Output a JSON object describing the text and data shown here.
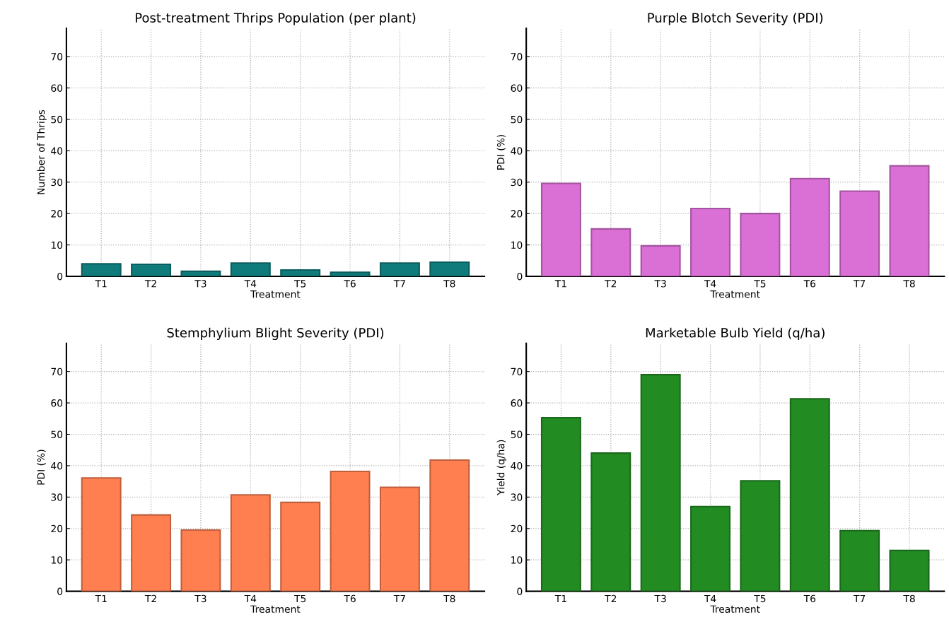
{
  "chart_data": [
    {
      "type": "bar",
      "title": "Post-treatment Thrips Population (per plant)",
      "xlabel": "Treatment",
      "ylabel": "Number of Thrips",
      "categories": [
        "T1",
        "T2",
        "T3",
        "T4",
        "T5",
        "T6",
        "T7",
        "T8"
      ],
      "values": [
        4.0,
        3.8,
        1.6,
        4.2,
        2.0,
        1.3,
        4.2,
        4.5
      ],
      "color": "#0f7b7b",
      "ylim": [
        0,
        79
      ],
      "yticks": [
        0,
        10,
        20,
        30,
        40,
        50,
        60,
        70
      ],
      "grid": true
    },
    {
      "type": "bar",
      "title": "Purple Blotch Severity (PDI)",
      "xlabel": "Treatment",
      "ylabel": "PDI (%)",
      "categories": [
        "T1",
        "T2",
        "T3",
        "T4",
        "T5",
        "T6",
        "T7",
        "T8"
      ],
      "values": [
        29.6,
        15.1,
        9.7,
        21.6,
        20.0,
        31.1,
        27.1,
        35.2
      ],
      "color": "#da70d6",
      "ylim": [
        0,
        79
      ],
      "yticks": [
        0,
        10,
        20,
        30,
        40,
        50,
        60,
        70
      ],
      "grid": true
    },
    {
      "type": "bar",
      "title": "Stemphylium Blight Severity (PDI)",
      "xlabel": "Treatment",
      "ylabel": "PDI (%)",
      "categories": [
        "T1",
        "T2",
        "T3",
        "T4",
        "T5",
        "T6",
        "T7",
        "T8"
      ],
      "values": [
        36.1,
        24.3,
        19.5,
        30.7,
        28.3,
        38.2,
        33.1,
        41.8
      ],
      "color": "#ff7f50",
      "ylim": [
        0,
        79
      ],
      "yticks": [
        0,
        10,
        20,
        30,
        40,
        50,
        60,
        70
      ],
      "grid": true
    },
    {
      "type": "bar",
      "title": "Marketable Bulb Yield (q/ha)",
      "xlabel": "Treatment",
      "ylabel": "Yield (q/ha)",
      "categories": [
        "T1",
        "T2",
        "T3",
        "T4",
        "T5",
        "T6",
        "T7",
        "T8"
      ],
      "values": [
        55.3,
        44.0,
        69.0,
        27.0,
        35.2,
        61.3,
        19.3,
        13.0
      ],
      "color": "#228b22",
      "ylim": [
        0,
        79
      ],
      "yticks": [
        0,
        10,
        20,
        30,
        40,
        50,
        60,
        70
      ],
      "grid": true
    }
  ]
}
